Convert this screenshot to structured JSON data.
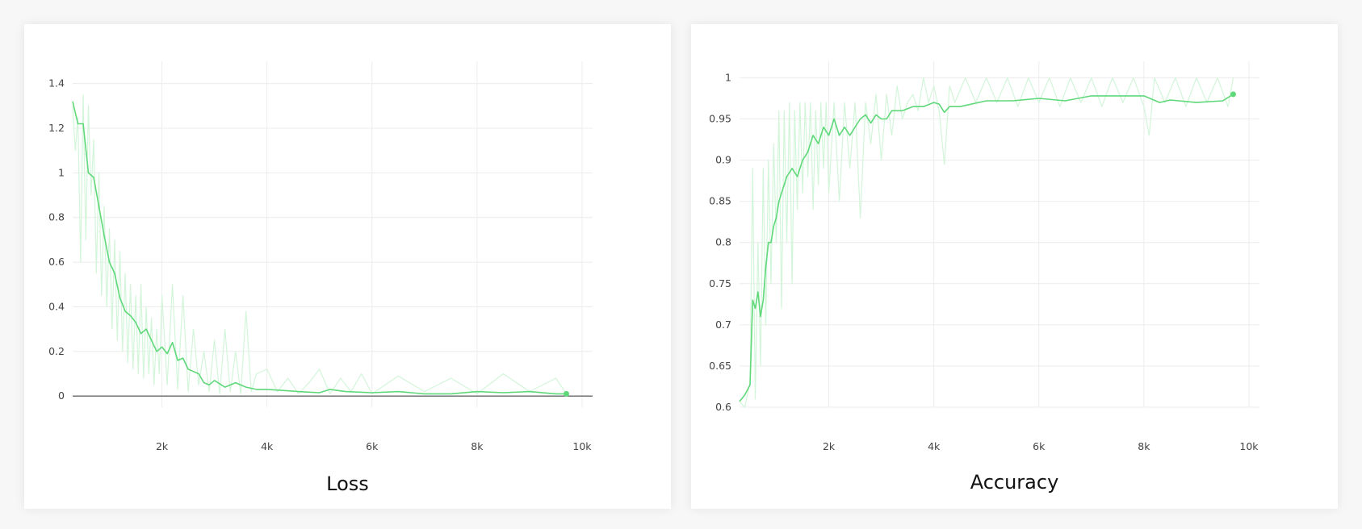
{
  "chart_data": [
    {
      "type": "line",
      "title": "Loss",
      "xlim": [
        300,
        10200
      ],
      "ylim": [
        -0.05,
        1.5
      ],
      "x_ticks": [
        2000,
        4000,
        6000,
        8000,
        10000
      ],
      "x_tick_labels": [
        "2k",
        "4k",
        "6k",
        "8k",
        "10k"
      ],
      "y_ticks": [
        0,
        0.2,
        0.4,
        0.6,
        0.8,
        1,
        1.2,
        1.4
      ],
      "y_tick_labels": [
        "0",
        "0.2",
        "0.4",
        "0.6",
        "0.8",
        "1",
        "1.2",
        "1.4"
      ],
      "zero_line": true,
      "grid": true,
      "colors": {
        "smoothed": "#5fd87a",
        "raw": "#d3f5da"
      },
      "series": [
        {
          "role": "smoothed",
          "x": [
            300,
            400,
            500,
            600,
            700,
            800,
            900,
            1000,
            1100,
            1200,
            1300,
            1400,
            1500,
            1600,
            1700,
            1800,
            1900,
            2000,
            2100,
            2200,
            2300,
            2400,
            2500,
            2600,
            2700,
            2800,
            2900,
            3000,
            3200,
            3400,
            3600,
            3800,
            4000,
            4300,
            4600,
            5000,
            5200,
            5500,
            6000,
            6500,
            7000,
            7500,
            8000,
            8500,
            9000,
            9500,
            9700
          ],
          "y": [
            1.32,
            1.22,
            1.22,
            1.0,
            0.98,
            0.85,
            0.72,
            0.6,
            0.55,
            0.44,
            0.38,
            0.36,
            0.33,
            0.28,
            0.3,
            0.25,
            0.2,
            0.22,
            0.19,
            0.24,
            0.16,
            0.17,
            0.12,
            0.11,
            0.1,
            0.06,
            0.05,
            0.07,
            0.04,
            0.06,
            0.04,
            0.03,
            0.03,
            0.025,
            0.02,
            0.015,
            0.03,
            0.02,
            0.015,
            0.02,
            0.01,
            0.01,
            0.02,
            0.015,
            0.02,
            0.01,
            0.01
          ]
        },
        {
          "role": "raw",
          "x": [
            300,
            350,
            400,
            450,
            500,
            550,
            600,
            650,
            700,
            750,
            800,
            850,
            900,
            950,
            1000,
            1050,
            1100,
            1150,
            1200,
            1250,
            1300,
            1350,
            1400,
            1450,
            1500,
            1550,
            1600,
            1650,
            1700,
            1750,
            1800,
            1850,
            1900,
            1950,
            2000,
            2100,
            2200,
            2300,
            2400,
            2500,
            2600,
            2700,
            2800,
            2900,
            3000,
            3100,
            3200,
            3300,
            3400,
            3500,
            3600,
            3700,
            3800,
            4000,
            4200,
            4400,
            4600,
            4800,
            5000,
            5200,
            5400,
            5600,
            5800,
            6000,
            6500,
            7000,
            7500,
            8000,
            8500,
            9000,
            9500,
            9700
          ],
          "y": [
            1.3,
            1.1,
            1.25,
            0.6,
            1.35,
            0.7,
            1.3,
            0.9,
            1.15,
            0.55,
            1.0,
            0.45,
            0.85,
            0.4,
            0.75,
            0.3,
            0.7,
            0.25,
            0.65,
            0.2,
            0.55,
            0.15,
            0.5,
            0.12,
            0.45,
            0.1,
            0.5,
            0.08,
            0.4,
            0.1,
            0.35,
            0.05,
            0.3,
            0.1,
            0.45,
            0.05,
            0.5,
            0.03,
            0.45,
            0.02,
            0.3,
            0.05,
            0.2,
            0.02,
            0.25,
            0.01,
            0.3,
            0.02,
            0.2,
            0.01,
            0.38,
            0.02,
            0.1,
            0.12,
            0.02,
            0.08,
            0.01,
            0.06,
            0.12,
            0.01,
            0.08,
            0.02,
            0.1,
            0.01,
            0.09,
            0.02,
            0.08,
            0.01,
            0.1,
            0.02,
            0.08,
            0.01
          ]
        }
      ]
    },
    {
      "type": "line",
      "title": "Accuracy",
      "xlim": [
        300,
        10200
      ],
      "ylim": [
        0.6,
        1.02
      ],
      "x_ticks": [
        2000,
        4000,
        6000,
        8000,
        10000
      ],
      "x_tick_labels": [
        "2k",
        "4k",
        "6k",
        "8k",
        "10k"
      ],
      "y_ticks": [
        0.6,
        0.65,
        0.7,
        0.75,
        0.8,
        0.85,
        0.9,
        0.95,
        1
      ],
      "y_tick_labels": [
        "0.6",
        "0.65",
        "0.7",
        "0.75",
        "0.8",
        "0.85",
        "0.9",
        "0.95",
        "1"
      ],
      "zero_line": false,
      "grid": true,
      "colors": {
        "smoothed": "#5fd87a",
        "raw": "#d3f5da"
      },
      "series": [
        {
          "role": "smoothed",
          "x": [
            300,
            400,
            500,
            550,
            600,
            650,
            700,
            750,
            800,
            850,
            900,
            950,
            1000,
            1050,
            1100,
            1150,
            1200,
            1300,
            1400,
            1500,
            1600,
            1700,
            1800,
            1900,
            2000,
            2100,
            2200,
            2300,
            2400,
            2500,
            2600,
            2700,
            2800,
            2900,
            3000,
            3100,
            3200,
            3400,
            3600,
            3800,
            4000,
            4100,
            4200,
            4300,
            4500,
            5000,
            5500,
            6000,
            6500,
            7000,
            7500,
            8000,
            8300,
            8500,
            9000,
            9500,
            9700
          ],
          "y": [
            0.607,
            0.615,
            0.627,
            0.73,
            0.72,
            0.74,
            0.71,
            0.73,
            0.77,
            0.8,
            0.8,
            0.82,
            0.83,
            0.85,
            0.86,
            0.87,
            0.88,
            0.89,
            0.88,
            0.9,
            0.91,
            0.93,
            0.92,
            0.94,
            0.93,
            0.95,
            0.93,
            0.94,
            0.93,
            0.94,
            0.95,
            0.955,
            0.945,
            0.955,
            0.95,
            0.95,
            0.96,
            0.96,
            0.965,
            0.965,
            0.97,
            0.968,
            0.958,
            0.965,
            0.965,
            0.972,
            0.972,
            0.975,
            0.972,
            0.978,
            0.978,
            0.978,
            0.97,
            0.973,
            0.97,
            0.972,
            0.98
          ]
        },
        {
          "role": "raw",
          "x": [
            300,
            400,
            500,
            550,
            600,
            650,
            700,
            750,
            800,
            850,
            900,
            950,
            1000,
            1050,
            1100,
            1150,
            1200,
            1250,
            1300,
            1350,
            1400,
            1450,
            1500,
            1550,
            1600,
            1650,
            1700,
            1750,
            1800,
            1850,
            1900,
            1950,
            2000,
            2100,
            2200,
            2300,
            2400,
            2500,
            2600,
            2700,
            2800,
            2900,
            3000,
            3100,
            3200,
            3300,
            3400,
            3500,
            3600,
            3700,
            3800,
            3900,
            4000,
            4100,
            4200,
            4300,
            4400,
            4600,
            4800,
            5000,
            5200,
            5400,
            5600,
            5800,
            6000,
            6200,
            6400,
            6600,
            6800,
            7000,
            7200,
            7400,
            7600,
            7800,
            8000,
            8100,
            8200,
            8400,
            8600,
            8800,
            9000,
            9200,
            9400,
            9600,
            9700
          ],
          "y": [
            0.607,
            0.6,
            0.63,
            0.89,
            0.61,
            0.8,
            0.65,
            0.89,
            0.7,
            0.9,
            0.75,
            0.92,
            0.8,
            0.96,
            0.72,
            0.96,
            0.8,
            0.97,
            0.75,
            0.96,
            0.84,
            0.97,
            0.86,
            0.97,
            0.88,
            0.97,
            0.84,
            0.96,
            0.87,
            0.97,
            0.89,
            0.97,
            0.86,
            0.97,
            0.85,
            0.97,
            0.89,
            0.97,
            0.83,
            0.97,
            0.92,
            0.98,
            0.9,
            0.98,
            0.93,
            0.99,
            0.95,
            0.97,
            0.98,
            0.96,
            1.0,
            0.97,
            0.99,
            0.96,
            0.895,
            0.99,
            0.97,
            1.0,
            0.97,
            1.0,
            0.97,
            1.0,
            0.965,
            1.0,
            0.97,
            1.0,
            0.965,
            1.0,
            0.97,
            1.0,
            0.965,
            1.0,
            0.97,
            1.0,
            0.965,
            0.93,
            1.0,
            0.97,
            1.0,
            0.965,
            1.0,
            0.97,
            1.0,
            0.965,
            1.0
          ]
        }
      ]
    }
  ]
}
